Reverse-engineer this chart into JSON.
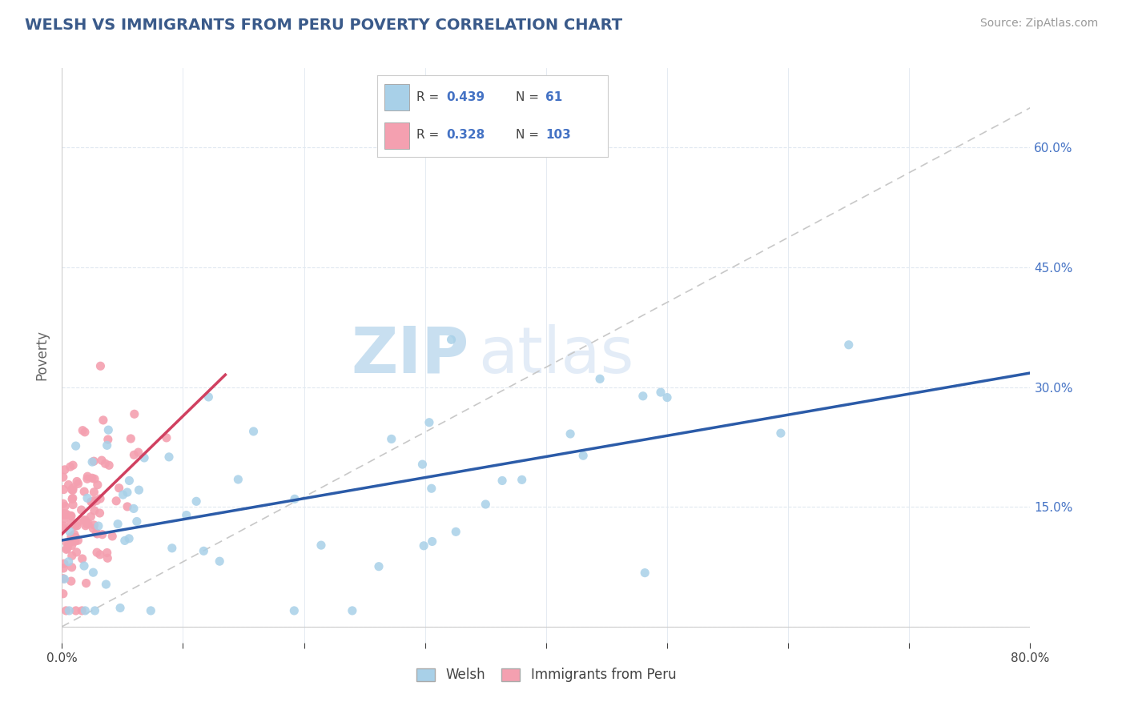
{
  "title": "WELSH VS IMMIGRANTS FROM PERU POVERTY CORRELATION CHART",
  "source_text": "Source: ZipAtlas.com",
  "ylabel": "Poverty",
  "xlim": [
    0.0,
    0.8
  ],
  "ylim": [
    -0.02,
    0.7
  ],
  "welsh_color": "#a8d0e8",
  "peru_color": "#f4a0b0",
  "welsh_R": 0.439,
  "welsh_N": 61,
  "peru_R": 0.328,
  "peru_N": 103,
  "legend_label_welsh": "Welsh",
  "legend_label_peru": "Immigrants from Peru",
  "watermark_zip": "ZIP",
  "watermark_atlas": "atlas",
  "background_color": "#ffffff",
  "plot_bg_color": "#ffffff",
  "grid_color": "#e0e8f0",
  "title_color": "#3a5a8a",
  "axis_label_color": "#666666",
  "tick_label_color_right": "#4472c4",
  "welsh_line_color": "#2b5ba8",
  "peru_line_color": "#d04060",
  "ref_line_color": "#c8c8c8"
}
